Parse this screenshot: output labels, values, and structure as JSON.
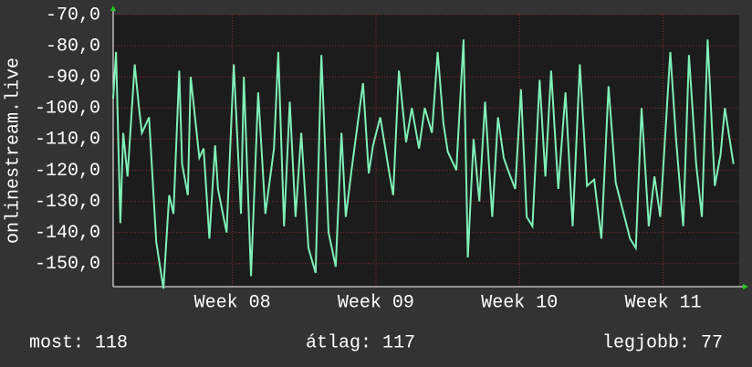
{
  "chart_data": {
    "type": "line",
    "ylabel": "onlinestream.live",
    "xlim": [
      7.17,
      11.53
    ],
    "xticks": [
      {
        "value": 8,
        "label": "Week 08"
      },
      {
        "value": 9,
        "label": "Week 09"
      },
      {
        "value": 10,
        "label": "Week 10"
      },
      {
        "value": 11,
        "label": "Week 11"
      }
    ],
    "ylim": [
      -157.4,
      -70
    ],
    "yticks": [
      {
        "value": -70,
        "label": "-70,0"
      },
      {
        "value": -80,
        "label": "-80,0"
      },
      {
        "value": -90,
        "label": "-90,0"
      },
      {
        "value": -100,
        "label": "-100,0"
      },
      {
        "value": -110,
        "label": "-110,0"
      },
      {
        "value": -120,
        "label": "-120,0"
      },
      {
        "value": -130,
        "label": "-130,0"
      },
      {
        "value": -140,
        "label": "-140,0"
      },
      {
        "value": -150,
        "label": "-150,0"
      }
    ],
    "grid": true,
    "x": [
      7.17,
      7.19,
      7.22,
      7.24,
      7.27,
      7.32,
      7.35,
      7.37,
      7.42,
      7.47,
      7.52,
      7.56,
      7.59,
      7.63,
      7.65,
      7.69,
      7.71,
      7.77,
      7.8,
      7.84,
      7.88,
      7.9,
      7.96,
      8.01,
      8.06,
      8.08,
      8.13,
      8.18,
      8.23,
      8.29,
      8.32,
      8.36,
      8.4,
      8.44,
      8.48,
      8.53,
      8.58,
      8.62,
      8.67,
      8.72,
      8.76,
      8.79,
      8.83,
      8.87,
      8.91,
      8.95,
      8.98,
      9.03,
      9.09,
      9.12,
      9.16,
      9.21,
      9.25,
      9.3,
      9.34,
      9.39,
      9.43,
      9.47,
      9.5,
      9.56,
      9.61,
      9.64,
      9.68,
      9.72,
      9.76,
      9.81,
      9.85,
      9.89,
      9.92,
      9.97,
      10.01,
      10.05,
      10.09,
      10.14,
      10.18,
      10.22,
      10.27,
      10.32,
      10.37,
      10.42,
      10.47,
      10.52,
      10.57,
      10.62,
      10.67,
      10.72,
      10.77,
      10.81,
      10.85,
      10.9,
      10.94,
      10.98,
      11.05,
      11.09,
      11.14,
      11.18,
      11.23,
      11.27,
      11.31,
      11.36,
      11.4,
      11.43,
      11.49
    ],
    "series": [
      {
        "color": "#7ff0b8",
        "values": [
          -97,
          -82,
          -137,
          -108,
          -122,
          -86,
          -100,
          -108,
          -103,
          -143,
          -158,
          -128,
          -134,
          -88,
          -118,
          -128,
          -90,
          -116,
          -113,
          -142,
          -112,
          -126,
          -140,
          -86,
          -134,
          -90,
          -154,
          -95,
          -134,
          -113,
          -82,
          -138,
          -98,
          -135,
          -108,
          -145,
          -153,
          -83,
          -140,
          -151,
          -108,
          -135,
          -120,
          -106,
          -92,
          -121,
          -112,
          -103,
          -120,
          -128,
          -88,
          -111,
          -100,
          -113,
          -100,
          -108,
          -82,
          -105,
          -114,
          -120,
          -78,
          -148,
          -110,
          -130,
          -98,
          -135,
          -103,
          -116,
          -120,
          -126,
          -94,
          -135,
          -138,
          -91,
          -122,
          -88,
          -126,
          -95,
          -138,
          -86,
          -125,
          -123,
          -142,
          -93,
          -124,
          -133,
          -142,
          -145,
          -100,
          -138,
          -122,
          -135,
          -82,
          -110,
          -138,
          -83,
          -118,
          -135,
          -78,
          -125,
          -115,
          -100,
          -118
        ]
      }
    ]
  },
  "footer": {
    "current": "most: 118",
    "average": "átlag: 117",
    "best": "legjobb: 77"
  }
}
